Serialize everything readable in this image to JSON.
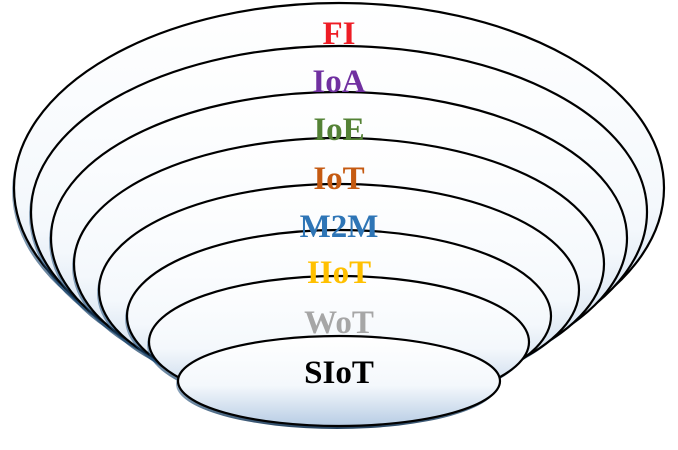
{
  "layers": [
    {
      "label": "FI",
      "color": "#EE1C25"
    },
    {
      "label": "IoA",
      "color": "#7030A0"
    },
    {
      "label": "IoE",
      "color": "#548235"
    },
    {
      "label": "IoT",
      "color": "#C55A11"
    },
    {
      "label": "M2M",
      "color": "#2E75B6"
    },
    {
      "label": "IIoT",
      "color": "#FFC000"
    },
    {
      "label": "WoT",
      "color": "#A6A6A6"
    },
    {
      "label": "SIoT",
      "color": "#000000"
    }
  ],
  "style": {
    "ring_stroke": "#000000",
    "gradient_top": "#FFFFFF",
    "gradient_bottom": "#B7CCE4",
    "shadow_color": "#1F4E79"
  }
}
